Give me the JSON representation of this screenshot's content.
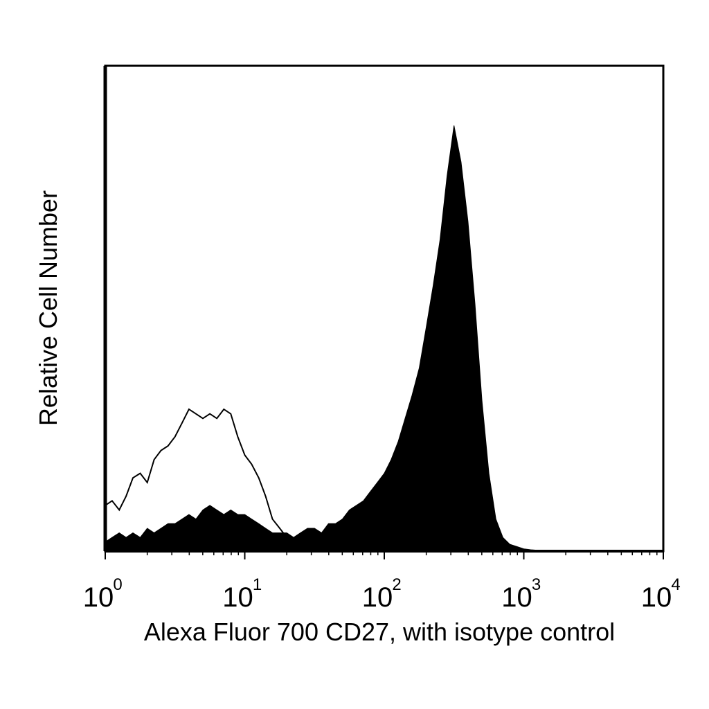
{
  "chart_data": {
    "type": "area",
    "xlabel": "Alexa Fluor 700 CD27, with isotype control",
    "ylabel": "Relative Cell Number",
    "xscale": "log",
    "xlim": [
      1,
      10000
    ],
    "ylim": [
      0,
      100
    ],
    "x_ticks": [
      {
        "base": "10",
        "exp": "0",
        "value": 1
      },
      {
        "base": "10",
        "exp": "1",
        "value": 10
      },
      {
        "base": "10",
        "exp": "2",
        "value": 100
      },
      {
        "base": "10",
        "exp": "3",
        "value": 1000
      },
      {
        "base": "10",
        "exp": "4",
        "value": 10000
      }
    ],
    "grid": false,
    "legend": "none",
    "series": [
      {
        "style": "filled",
        "color": "#000000",
        "x": [
          1.0,
          1.12,
          1.26,
          1.41,
          1.58,
          1.78,
          2.0,
          2.24,
          2.51,
          2.82,
          3.16,
          3.55,
          3.98,
          4.47,
          5.01,
          5.62,
          6.31,
          7.08,
          7.94,
          8.91,
          10.0,
          11.2,
          12.6,
          14.1,
          15.8,
          17.8,
          20.0,
          22.4,
          25.1,
          28.2,
          31.6,
          35.5,
          39.8,
          44.7,
          50.1,
          56.2,
          63.1,
          70.8,
          79.4,
          89.1,
          100,
          112,
          126,
          141,
          158,
          178,
          200,
          224,
          251,
          282,
          316,
          355,
          398,
          447,
          501,
          562,
          631,
          708,
          794,
          891,
          1000,
          1120,
          1260,
          1410,
          1780,
          3160,
          10000
        ],
        "y": [
          2,
          3,
          4,
          3,
          4,
          3,
          5,
          4,
          5,
          6,
          6,
          7,
          8,
          7,
          9,
          10,
          9,
          8,
          9,
          8,
          8,
          7,
          6,
          5,
          4,
          4,
          4,
          3,
          4,
          5,
          5,
          4,
          6,
          6,
          7,
          9,
          10,
          11,
          13,
          15,
          17,
          20,
          24,
          29,
          34,
          40,
          49,
          58,
          68,
          82,
          93,
          85,
          72,
          54,
          33,
          17,
          7,
          3,
          1.5,
          1,
          0.5,
          0.3,
          0.2,
          0.1,
          0.1,
          0,
          0
        ]
      },
      {
        "style": "outline",
        "color": "#000000",
        "x": [
          1.0,
          1.12,
          1.26,
          1.41,
          1.58,
          1.78,
          2.0,
          2.24,
          2.51,
          2.82,
          3.16,
          3.55,
          3.98,
          4.47,
          5.01,
          5.62,
          6.31,
          7.08,
          7.94,
          8.91,
          10.0,
          11.2,
          12.6,
          14.1,
          15.8,
          17.8,
          20.0,
          22.4,
          25.1,
          28.2
        ],
        "y": [
          10,
          11,
          9,
          12,
          16,
          17,
          15,
          20,
          22,
          23,
          25,
          28,
          31,
          30,
          29,
          30,
          29,
          31,
          30,
          25,
          21,
          19,
          16,
          12,
          7,
          5,
          3,
          2,
          2,
          2
        ]
      }
    ]
  }
}
